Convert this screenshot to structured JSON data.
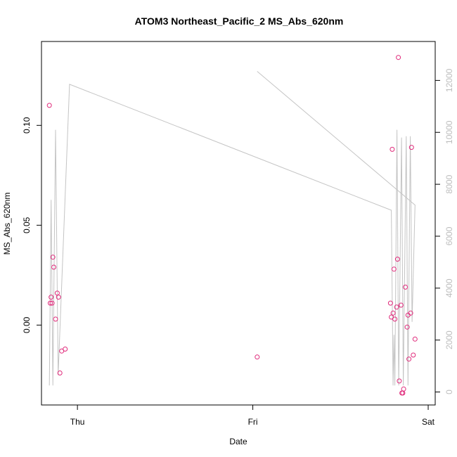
{
  "chart_data": {
    "type": "scatter",
    "title": "ATOM3 Northeast_Pacific_2 MS_Abs_620nm",
    "xlabel": "Date",
    "ylabel": "MS_Abs_620nm",
    "x_ticks": [
      {
        "label": "Thu",
        "day": 0
      },
      {
        "label": "Fri",
        "day": 1
      },
      {
        "label": "Sat",
        "day": 2
      }
    ],
    "xlim_days": [
      -0.205,
      2.04
    ],
    "ylim": [
      -0.04,
      0.142
    ],
    "y_ticks": [
      0.0,
      0.05,
      0.1
    ],
    "y_tick_labels": [
      "0.00",
      "0.05",
      "0.10"
    ],
    "y2lim": [
      -500,
      13500
    ],
    "y2_ticks": [
      0,
      2000,
      4000,
      6000,
      8000,
      10000,
      12000
    ],
    "y2_tick_labels": [
      "0",
      "2000",
      "4000",
      "6000",
      "8000",
      "10000",
      "12000"
    ],
    "point_color": "#e0297a",
    "line_color": "#c4c4c4",
    "points": [
      {
        "day": -0.16,
        "value": 0.11
      },
      {
        "day": -0.155,
        "value": 0.011
      },
      {
        "day": -0.15,
        "value": 0.014
      },
      {
        "day": -0.145,
        "value": 0.011
      },
      {
        "day": -0.14,
        "value": 0.034
      },
      {
        "day": -0.135,
        "value": 0.029
      },
      {
        "day": -0.125,
        "value": 0.003
      },
      {
        "day": -0.115,
        "value": 0.016
      },
      {
        "day": -0.108,
        "value": 0.014
      },
      {
        "day": -0.1,
        "value": -0.024
      },
      {
        "day": -0.09,
        "value": -0.013
      },
      {
        "day": -0.07,
        "value": -0.012
      },
      {
        "day": 1.025,
        "value": -0.016
      },
      {
        "day": 1.785,
        "value": 0.011
      },
      {
        "day": 1.79,
        "value": 0.004
      },
      {
        "day": 1.795,
        "value": 0.088
      },
      {
        "day": 1.8,
        "value": 0.006
      },
      {
        "day": 1.805,
        "value": 0.028
      },
      {
        "day": 1.81,
        "value": 0.003
      },
      {
        "day": 1.82,
        "value": 0.009
      },
      {
        "day": 1.825,
        "value": 0.033
      },
      {
        "day": 1.83,
        "value": 0.134
      },
      {
        "day": 1.835,
        "value": -0.028
      },
      {
        "day": 1.845,
        "value": 0.01
      },
      {
        "day": 1.85,
        "value": -0.034
      },
      {
        "day": 1.855,
        "value": -0.034
      },
      {
        "day": 1.86,
        "value": -0.032
      },
      {
        "day": 1.87,
        "value": 0.019
      },
      {
        "day": 1.88,
        "value": -0.001
      },
      {
        "day": 1.885,
        "value": 0.005
      },
      {
        "day": 1.89,
        "value": -0.017
      },
      {
        "day": 1.9,
        "value": 0.006
      },
      {
        "day": 1.905,
        "value": 0.089
      },
      {
        "day": 1.915,
        "value": -0.015
      },
      {
        "day": 1.925,
        "value": -0.007
      }
    ],
    "altitude_series": [
      {
        "day": -0.16,
        "value": 250
      },
      {
        "day": -0.15,
        "value": 7400
      },
      {
        "day": -0.14,
        "value": 250
      },
      {
        "day": -0.125,
        "value": 10100
      },
      {
        "day": -0.11,
        "value": 650
      },
      {
        "day": -0.045,
        "value": 11850
      },
      {
        "day": 1.79,
        "value": 7000
      },
      {
        "day": 1.8,
        "value": 250
      },
      {
        "day": 1.805,
        "value": 2200
      },
      {
        "day": 1.81,
        "value": 250
      },
      {
        "day": 1.822,
        "value": 10100
      },
      {
        "day": 1.832,
        "value": 250
      },
      {
        "day": 1.848,
        "value": 9800
      },
      {
        "day": 1.858,
        "value": 250
      },
      {
        "day": 1.875,
        "value": 9850
      },
      {
        "day": 1.885,
        "value": 250
      },
      {
        "day": 1.898,
        "value": 9850
      },
      {
        "day": 1.908,
        "value": 2700
      },
      {
        "day": 1.925,
        "value": 7200
      },
      {
        "day": 1.025,
        "value": 12350
      }
    ]
  }
}
